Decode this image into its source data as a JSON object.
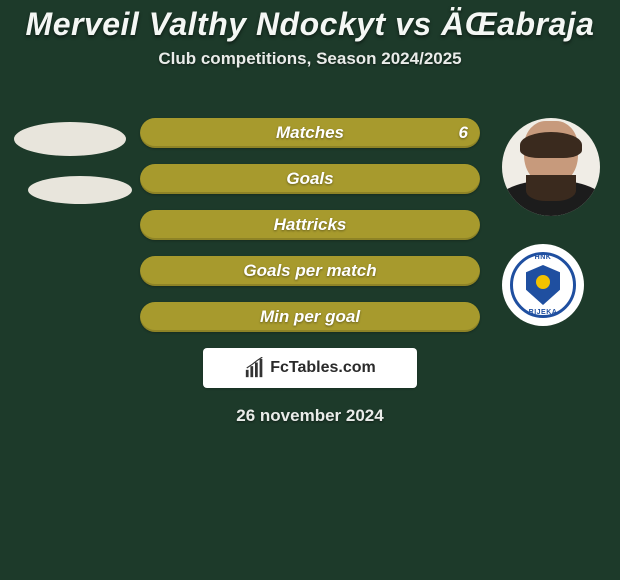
{
  "background_color": "#1d3a2a",
  "title": {
    "text": "Merveil Valthy Ndockyt vs ÄŒabraja",
    "color": "#f4f7f4",
    "fontsize": 32
  },
  "subtitle": {
    "text": "Club competitions, Season 2024/2025",
    "color": "#e9ece9",
    "fontsize": 17
  },
  "stat_bars": {
    "bar_color": "#a79a2d",
    "label_color": "#ffffff",
    "label_fontsize": 17,
    "value_color": "#ffffff",
    "value_fontsize": 17,
    "rows": [
      {
        "label": "Matches",
        "left": "",
        "right": "6"
      },
      {
        "label": "Goals",
        "left": "",
        "right": ""
      },
      {
        "label": "Hattricks",
        "left": "",
        "right": ""
      },
      {
        "label": "Goals per match",
        "left": "",
        "right": ""
      },
      {
        "label": "Min per goal",
        "left": "",
        "right": ""
      }
    ]
  },
  "left_player": {
    "avatar_bg": "#e8e5dc"
  },
  "right_player": {
    "avatar_bg": "#f0ede6",
    "club_badge": {
      "top_text": "HNK",
      "bottom_text": "RIJEKA",
      "ring_color": "#1f4fa0",
      "shield_color": "#1f4fa0",
      "ball_color": "#f2c200",
      "bg": "#ffffff"
    }
  },
  "watermark": {
    "text": "FcTables.com",
    "bg": "#ffffff",
    "text_color": "#2a2a2a",
    "fontsize": 16
  },
  "date": {
    "text": "26 november 2024",
    "color": "#e9ece9",
    "fontsize": 17
  }
}
